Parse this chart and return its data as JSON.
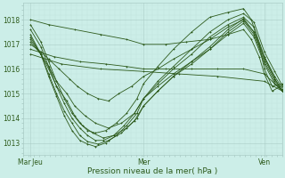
{
  "xlabel": "Pression niveau de la mer( hPa )",
  "bg_color": "#cceee8",
  "line_color": "#2d5a1b",
  "grid_major_color": "#aaccc6",
  "grid_minor_color": "#bbddd8",
  "ylim": [
    1012.5,
    1018.7
  ],
  "xlim": [
    0.0,
    1.0
  ],
  "xtick_labels": [
    "Mar Jeu",
    "Mer",
    "Ven"
  ],
  "xtick_pos": [
    0.03,
    0.465,
    0.93
  ],
  "ytick_values": [
    1013,
    1014,
    1015,
    1016,
    1017,
    1018
  ],
  "series": [
    {
      "x": [
        0.03,
        0.12,
        0.22,
        0.32,
        0.4,
        0.465,
        0.55,
        0.65,
        0.75,
        0.85,
        0.93,
        1.0
      ],
      "y": [
        1016.8,
        1016.5,
        1016.3,
        1016.2,
        1016.1,
        1016.0,
        1016.0,
        1016.0,
        1016.0,
        1016.0,
        1015.8,
        1015.1
      ]
    },
    {
      "x": [
        0.03,
        0.15,
        0.3,
        0.465,
        0.6,
        0.75,
        0.93,
        1.0
      ],
      "y": [
        1016.6,
        1016.2,
        1016.0,
        1015.9,
        1015.8,
        1015.7,
        1015.5,
        1015.1
      ]
    },
    {
      "x": [
        0.03,
        0.07,
        0.1,
        0.14,
        0.18,
        0.21,
        0.25,
        0.29,
        0.33,
        0.37,
        0.42,
        0.465,
        0.52,
        0.58,
        0.65,
        0.72,
        0.79,
        0.85,
        0.89,
        0.93,
        0.97,
        1.0
      ],
      "y": [
        1017.0,
        1016.7,
        1016.4,
        1016.0,
        1015.6,
        1015.3,
        1015.0,
        1014.8,
        1014.7,
        1015.0,
        1015.3,
        1015.7,
        1016.0,
        1016.4,
        1016.8,
        1017.2,
        1017.7,
        1018.0,
        1017.5,
        1016.5,
        1015.6,
        1015.1
      ]
    },
    {
      "x": [
        0.03,
        0.07,
        0.1,
        0.13,
        0.17,
        0.2,
        0.24,
        0.28,
        0.33,
        0.38,
        0.43,
        0.465,
        0.52,
        0.58,
        0.65,
        0.72,
        0.79,
        0.85,
        0.89,
        0.93,
        0.97,
        1.0
      ],
      "y": [
        1017.1,
        1016.6,
        1016.1,
        1015.5,
        1015.0,
        1014.5,
        1014.1,
        1013.8,
        1013.6,
        1013.8,
        1014.2,
        1014.8,
        1015.3,
        1015.8,
        1016.3,
        1016.8,
        1017.4,
        1017.85,
        1017.3,
        1016.2,
        1015.4,
        1015.1
      ]
    },
    {
      "x": [
        0.03,
        0.07,
        0.1,
        0.13,
        0.17,
        0.2,
        0.23,
        0.27,
        0.31,
        0.35,
        0.4,
        0.44,
        0.465,
        0.52,
        0.58,
        0.65,
        0.72,
        0.79,
        0.85,
        0.89,
        0.93,
        0.97,
        1.0
      ],
      "y": [
        1017.2,
        1016.6,
        1016.0,
        1015.3,
        1014.7,
        1014.1,
        1013.7,
        1013.4,
        1013.2,
        1013.3,
        1013.6,
        1014.0,
        1014.5,
        1015.1,
        1015.7,
        1016.2,
        1016.8,
        1017.5,
        1017.95,
        1017.4,
        1016.3,
        1015.5,
        1015.1
      ]
    },
    {
      "x": [
        0.03,
        0.07,
        0.1,
        0.13,
        0.16,
        0.19,
        0.22,
        0.25,
        0.29,
        0.33,
        0.38,
        0.43,
        0.465,
        0.52,
        0.58,
        0.65,
        0.72,
        0.79,
        0.85,
        0.89,
        0.93,
        0.97,
        1.0
      ],
      "y": [
        1017.3,
        1016.6,
        1015.8,
        1015.0,
        1014.3,
        1013.8,
        1013.3,
        1013.05,
        1012.95,
        1013.1,
        1013.4,
        1013.9,
        1014.5,
        1015.1,
        1015.7,
        1016.3,
        1016.9,
        1017.6,
        1018.05,
        1017.5,
        1016.4,
        1015.6,
        1015.1
      ]
    },
    {
      "x": [
        0.03,
        0.07,
        0.1,
        0.13,
        0.16,
        0.19,
        0.22,
        0.25,
        0.28,
        0.32,
        0.36,
        0.4,
        0.44,
        0.465,
        0.52,
        0.58,
        0.65,
        0.72,
        0.79,
        0.85,
        0.89,
        0.93,
        0.97,
        1.0
      ],
      "y": [
        1017.4,
        1016.6,
        1015.7,
        1014.9,
        1014.1,
        1013.5,
        1013.1,
        1012.95,
        1012.85,
        1013.0,
        1013.3,
        1013.7,
        1014.2,
        1014.8,
        1015.4,
        1016.0,
        1016.6,
        1017.3,
        1017.8,
        1018.1,
        1017.7,
        1016.5,
        1015.7,
        1015.2
      ]
    },
    {
      "x": [
        0.03,
        0.07,
        0.1,
        0.13,
        0.16,
        0.19,
        0.22,
        0.25,
        0.28,
        0.31,
        0.35,
        0.39,
        0.43,
        0.465,
        0.52,
        0.58,
        0.65,
        0.72,
        0.79,
        0.85,
        0.89,
        0.93,
        0.97,
        1.0
      ],
      "y": [
        1017.6,
        1016.9,
        1016.1,
        1015.3,
        1014.6,
        1014.0,
        1013.6,
        1013.3,
        1013.1,
        1013.1,
        1013.3,
        1013.7,
        1014.2,
        1014.8,
        1015.5,
        1016.1,
        1016.8,
        1017.5,
        1018.0,
        1018.25,
        1017.9,
        1016.7,
        1015.9,
        1015.3
      ]
    },
    {
      "x": [
        0.03,
        0.07,
        0.1,
        0.13,
        0.16,
        0.19,
        0.22,
        0.25,
        0.28,
        0.32,
        0.36,
        0.4,
        0.44,
        0.465,
        0.52,
        0.58,
        0.65,
        0.72,
        0.79,
        0.85,
        0.88,
        0.91,
        0.93,
        0.96,
        1.0
      ],
      "y": [
        1017.8,
        1017.1,
        1016.3,
        1015.5,
        1014.8,
        1014.2,
        1013.8,
        1013.5,
        1013.4,
        1013.5,
        1013.8,
        1014.2,
        1014.8,
        1015.4,
        1016.1,
        1016.8,
        1017.5,
        1018.1,
        1018.3,
        1018.45,
        1018.0,
        1017.0,
        1016.0,
        1015.3,
        1015.4
      ]
    },
    {
      "x": [
        0.03,
        0.1,
        0.2,
        0.3,
        0.4,
        0.465,
        0.55,
        0.63,
        0.72,
        0.79,
        0.85,
        0.88,
        0.91,
        0.93,
        0.96,
        1.0
      ],
      "y": [
        1018.0,
        1017.8,
        1017.6,
        1017.4,
        1017.2,
        1017.0,
        1017.0,
        1017.1,
        1017.2,
        1017.4,
        1017.6,
        1017.2,
        1016.5,
        1015.8,
        1015.1,
        1015.35
      ]
    }
  ]
}
